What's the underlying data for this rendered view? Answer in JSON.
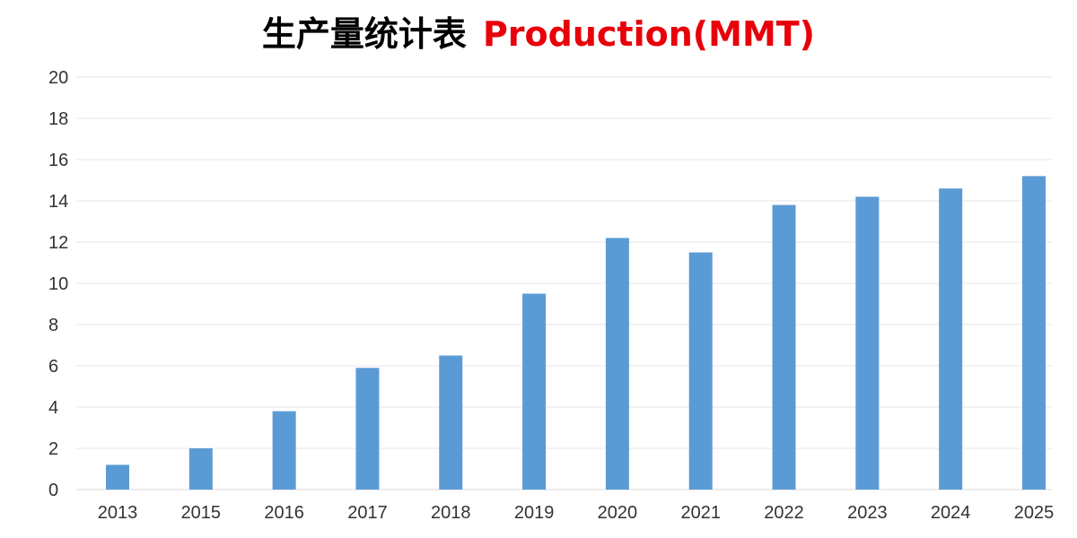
{
  "title": {
    "zh": "生产量统计表",
    "en": "Production(MMT)"
  },
  "colors": {
    "bar": "#5b9bd5",
    "title_en": "#e8000b",
    "grid": "#e6e6e6"
  },
  "chart_data": {
    "type": "bar",
    "title": "生产量统计表 Production(MMT)",
    "categories": [
      "2013",
      "2015",
      "2016",
      "2017",
      "2018",
      "2019",
      "2020",
      "2021",
      "2022",
      "2023",
      "2024",
      "2025"
    ],
    "values": [
      1.2,
      2.0,
      3.8,
      5.9,
      6.5,
      9.5,
      12.2,
      11.5,
      13.8,
      14.2,
      14.6,
      15.2
    ],
    "yticks": [
      "0",
      "2",
      "4",
      "6",
      "8",
      "10",
      "12",
      "14",
      "16",
      "18",
      "20"
    ],
    "ylim": [
      0,
      20
    ],
    "xlabel": "",
    "ylabel": "",
    "grid": true,
    "legend": "none"
  }
}
